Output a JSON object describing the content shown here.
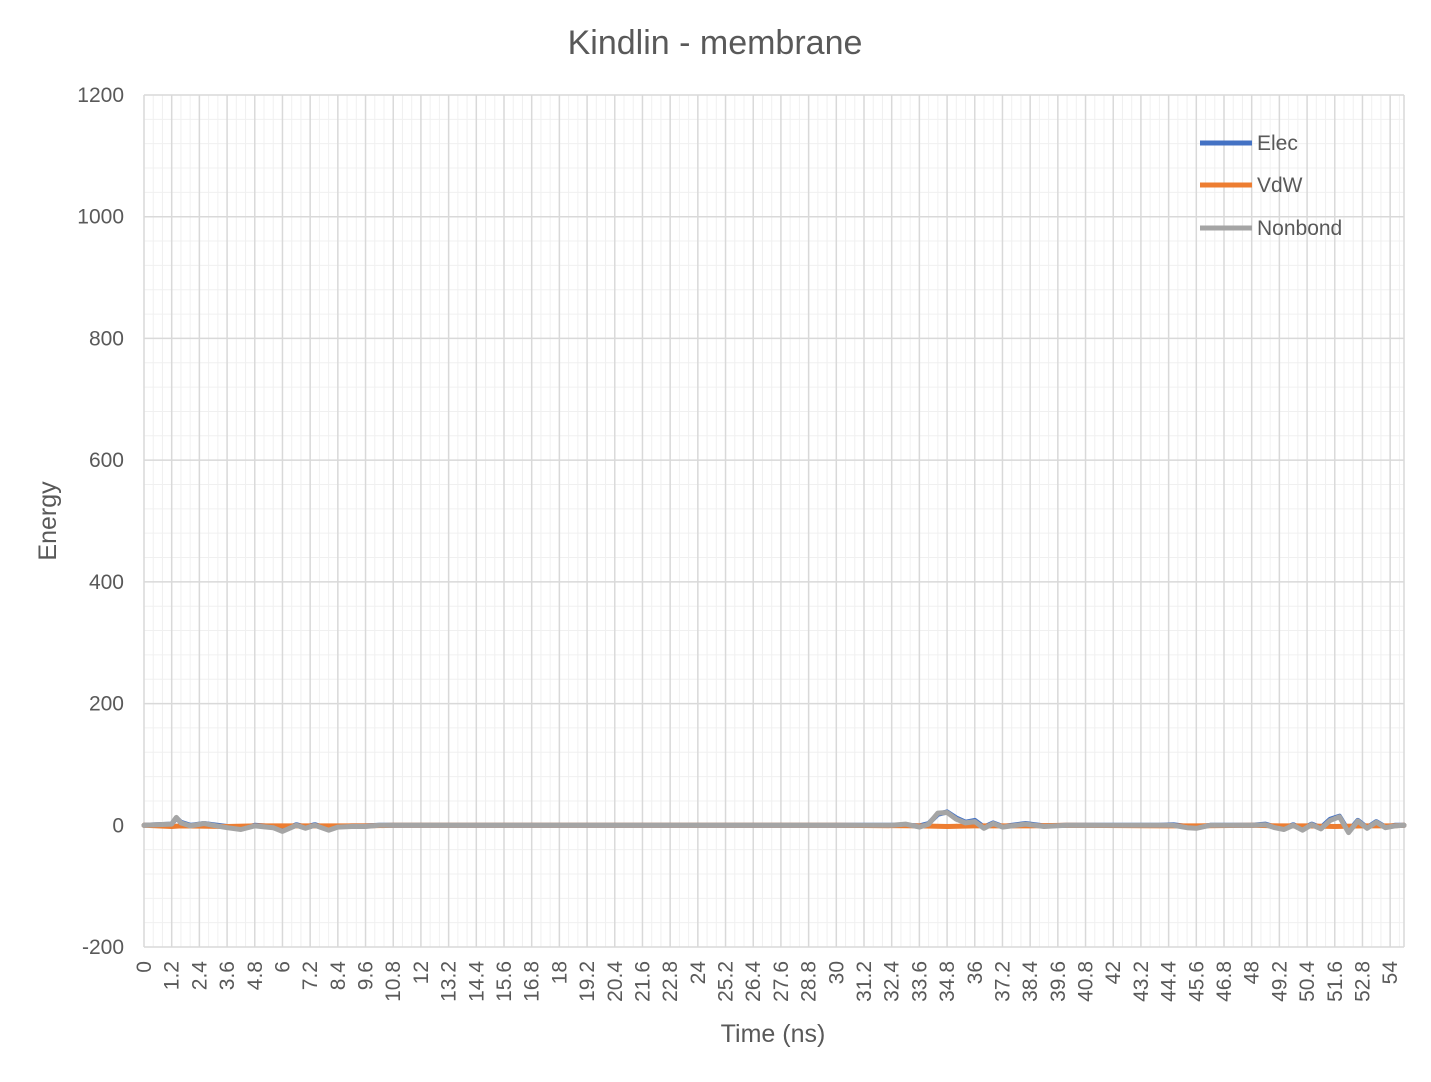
{
  "chart_data": {
    "type": "line",
    "title": "Kindlin - membrane",
    "xlabel": "Time (ns)",
    "ylabel": "Energy",
    "ylim": [
      -200,
      1200
    ],
    "yticks": [
      "-200",
      "0",
      "200",
      "400",
      "600",
      "800",
      "1000",
      "1200"
    ],
    "xlim": [
      0,
      54.6
    ],
    "xticks": [
      "0",
      "1.2",
      "2.4",
      "3.6",
      "4.8",
      "6",
      "7.2",
      "8.4",
      "9.6",
      "10.8",
      "12",
      "13.2",
      "14.4",
      "15.6",
      "16.8",
      "18",
      "19.2",
      "20.4",
      "21.6",
      "22.8",
      "24",
      "25.2",
      "26.4",
      "27.6",
      "28.8",
      "30",
      "31.2",
      "32.4",
      "33.6",
      "34.8",
      "36",
      "37.2",
      "38.4",
      "39.6",
      "40.8",
      "42",
      "43.2",
      "44.4",
      "45.6",
      "46.8",
      "48",
      "49.2",
      "50.4",
      "51.6",
      "52.8",
      "54"
    ],
    "grid": true,
    "legend_position": "top-right",
    "series": [
      {
        "name": "Elec",
        "color": "#4472C4",
        "x": [
          0,
          1.2,
          1.4,
          1.6,
          2.0,
          2.6,
          3.0,
          3.6,
          4.2,
          4.8,
          5.6,
          6.0,
          6.6,
          7.0,
          7.4,
          8.0,
          8.4,
          9.0,
          9.6,
          10.2,
          10.8,
          20,
          30,
          32.4,
          33.0,
          33.6,
          34.0,
          34.4,
          34.8,
          35.2,
          35.6,
          36.0,
          36.4,
          36.8,
          37.2,
          37.8,
          38.2,
          38.6,
          39.0,
          40,
          44.0,
          44.6,
          45.2,
          45.6,
          46.2,
          48.0,
          48.6,
          49.0,
          49.4,
          49.8,
          50.2,
          50.6,
          51.0,
          51.4,
          51.8,
          52.2,
          52.6,
          53.0,
          53.4,
          53.8,
          54.2,
          54.6
        ],
        "y": [
          0,
          2,
          12,
          5,
          0,
          3,
          1,
          -2,
          -5,
          0,
          -2,
          -8,
          1,
          -3,
          1,
          -6,
          -2,
          -1,
          -1,
          0,
          0,
          0,
          0,
          0,
          0,
          -1,
          3,
          18,
          22,
          12,
          5,
          8,
          -3,
          4,
          -2,
          1,
          3,
          1,
          -1,
          0,
          0,
          1,
          -2,
          -3,
          0,
          0,
          2,
          -3,
          -5,
          1,
          -6,
          2,
          -4,
          10,
          15,
          -10,
          8,
          -4,
          6,
          -3,
          0,
          0
        ]
      },
      {
        "name": "VdW",
        "color": "#ED7D31",
        "x": [
          0,
          1.2,
          1.6,
          3.6,
          4.8,
          6.0,
          7.2,
          8.4,
          9.6,
          10.8,
          20,
          30,
          33.6,
          34.8,
          36.0,
          37.2,
          38.4,
          40,
          44.4,
          45.6,
          48,
          49.2,
          50.4,
          51.6,
          52.8,
          54,
          54.6
        ],
        "y": [
          0,
          -2,
          -1,
          -2,
          -1,
          -1,
          -1,
          -1,
          -1,
          0,
          0,
          0,
          -1,
          -2,
          -1,
          -1,
          -1,
          0,
          -1,
          -1,
          0,
          -1,
          -1,
          -2,
          -1,
          -1,
          0
        ]
      },
      {
        "name": "Nonbond",
        "color": "#A5A5A5",
        "x": [
          0,
          1.2,
          1.4,
          1.6,
          2.0,
          2.6,
          3.0,
          3.6,
          4.2,
          4.8,
          5.6,
          6.0,
          6.6,
          7.0,
          7.4,
          8.0,
          8.4,
          9.0,
          9.6,
          10.2,
          10.8,
          20,
          30,
          32.4,
          33.0,
          33.6,
          34.0,
          34.4,
          34.8,
          35.2,
          35.6,
          36.0,
          36.4,
          36.8,
          37.2,
          37.8,
          38.2,
          38.6,
          39.0,
          40,
          44.0,
          44.6,
          45.2,
          45.6,
          46.2,
          48.0,
          48.6,
          49.0,
          49.4,
          49.8,
          50.2,
          50.6,
          51.0,
          51.4,
          51.8,
          52.2,
          52.6,
          53.0,
          53.4,
          53.8,
          54.2,
          54.6
        ],
        "y": [
          0,
          2,
          13,
          4,
          -1,
          3,
          0,
          -4,
          -7,
          -1,
          -4,
          -10,
          0,
          -5,
          0,
          -8,
          -3,
          -2,
          -2,
          0,
          0,
          0,
          0,
          0,
          2,
          -3,
          2,
          20,
          21,
          10,
          4,
          6,
          -5,
          3,
          -3,
          0,
          2,
          0,
          -2,
          0,
          0,
          0,
          -4,
          -5,
          0,
          0,
          1,
          -4,
          -7,
          0,
          -8,
          1,
          -6,
          8,
          14,
          -12,
          7,
          -5,
          5,
          -4,
          -1,
          0
        ]
      }
    ]
  }
}
